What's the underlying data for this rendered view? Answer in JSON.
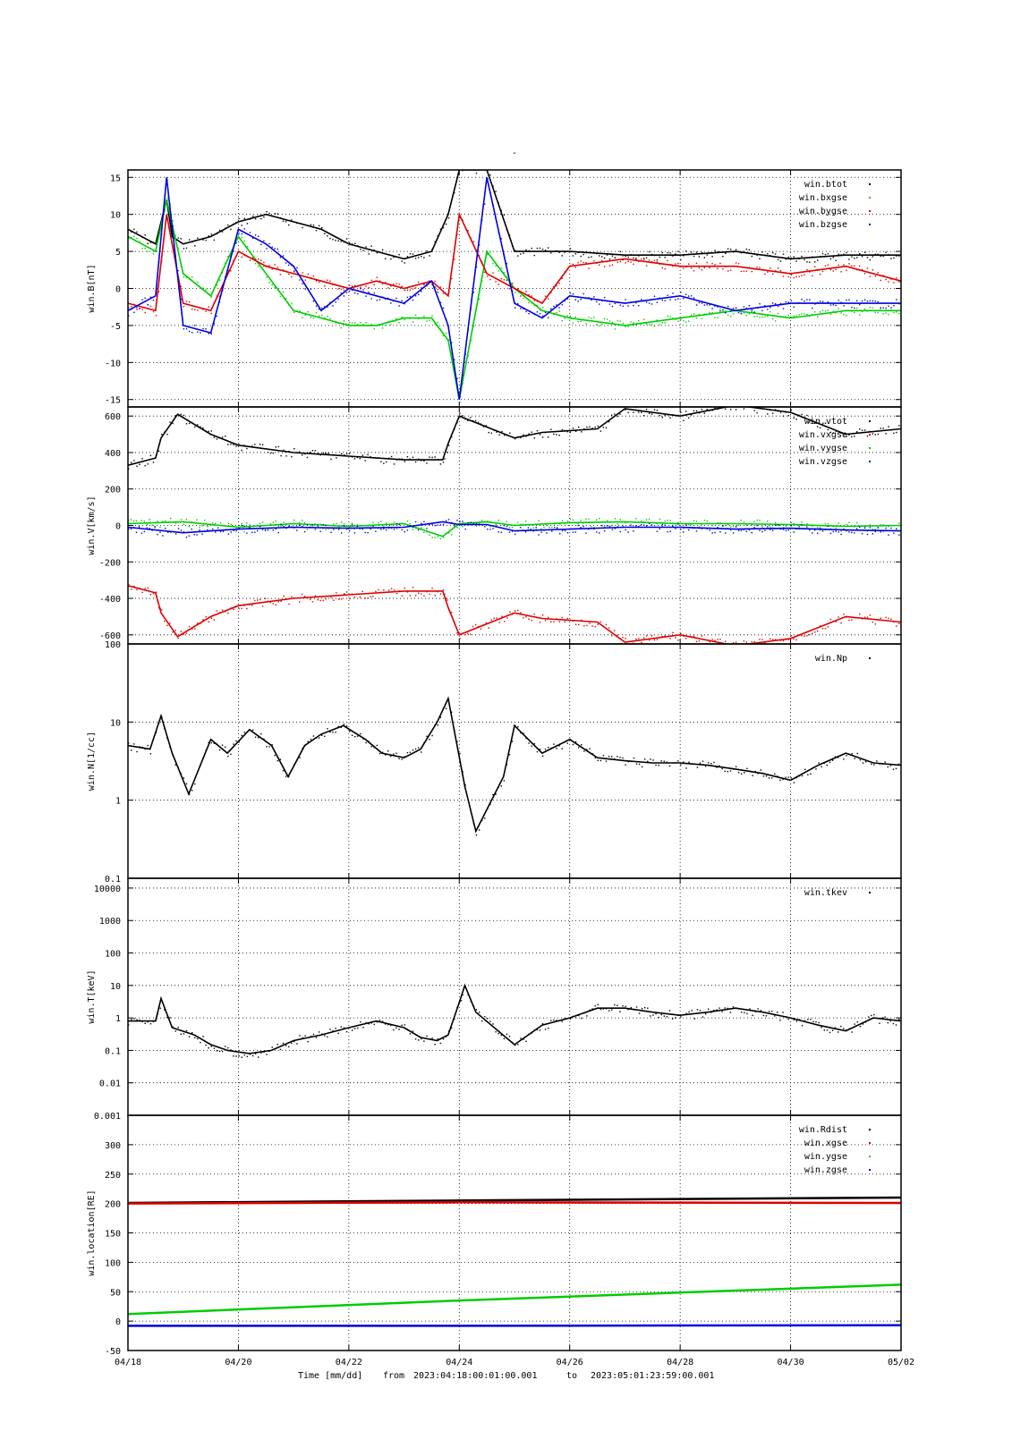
{
  "title": "-",
  "footer": {
    "xlabel": "Time [mm/dd]",
    "from_label": "from",
    "from_value": "2023:04:18:00:01:00.001",
    "to_label": "to",
    "to_value": "2023:05:01:23:59:00.001"
  },
  "colors": {
    "black": "#000000",
    "red": "#dd0000",
    "green": "#00cc00",
    "blue": "#0000dd"
  },
  "chart_data": [
    {
      "type": "scatter",
      "ylabel": "win.B[nT]",
      "ylim": [
        -16,
        16
      ],
      "yticks": [
        {
          "v": 15,
          "t": "15"
        },
        {
          "v": 10,
          "t": "10"
        },
        {
          "v": 5,
          "t": "5"
        },
        {
          "v": 0,
          "t": "0"
        },
        {
          "v": -5,
          "t": "-5"
        },
        {
          "v": -10,
          "t": "-10"
        },
        {
          "v": -15,
          "t": "-15"
        }
      ],
      "legend": "top-right",
      "series": [
        {
          "name": "win.btot",
          "color": "#000000",
          "x": [
            0,
            0.5,
            0.7,
            0.8,
            1,
            1.5,
            2,
            2.5,
            3,
            3.5,
            4,
            4.5,
            5,
            5.5,
            5.8,
            6,
            6.5,
            7,
            7.5,
            8,
            9,
            10,
            11,
            12,
            13,
            14
          ],
          "y": [
            8,
            6,
            12,
            7,
            6,
            7,
            9,
            10,
            9,
            8,
            6,
            5,
            4,
            5,
            10,
            16,
            16,
            5,
            5,
            5,
            4.5,
            4.5,
            5,
            4,
            4.5,
            4.5
          ]
        },
        {
          "name": "win.bxgse",
          "color": "#00cc00",
          "x": [
            0,
            0.5,
            0.7,
            1,
            1.5,
            2,
            2.5,
            3,
            3.5,
            4,
            4.5,
            5,
            5.5,
            5.8,
            6,
            6.5,
            7,
            7.5,
            8,
            9,
            10,
            11,
            12,
            13,
            14
          ],
          "y": [
            7,
            5,
            12,
            2,
            -1,
            7,
            2,
            -3,
            -4,
            -5,
            -5,
            -4,
            -4,
            -7,
            -15,
            5,
            0,
            -3,
            -4,
            -5,
            -4,
            -3,
            -4,
            -3,
            -3
          ]
        },
        {
          "name": "win.bygse",
          "color": "#dd0000",
          "x": [
            0,
            0.5,
            0.7,
            1,
            1.5,
            2,
            2.5,
            3,
            3.5,
            4,
            4.5,
            5,
            5.5,
            5.8,
            6,
            6.5,
            7,
            7.5,
            8,
            9,
            10,
            11,
            12,
            13,
            14
          ],
          "y": [
            -2,
            -3,
            10,
            -2,
            -3,
            5,
            3,
            2,
            1,
            0,
            1,
            0,
            1,
            -1,
            10,
            2,
            0,
            -2,
            3,
            4,
            3,
            3,
            2,
            3,
            1
          ]
        },
        {
          "name": "win.bzgse",
          "color": "#0000dd",
          "x": [
            0,
            0.5,
            0.7,
            1,
            1.5,
            2,
            2.5,
            3,
            3.5,
            4,
            4.5,
            5,
            5.5,
            5.8,
            6,
            6.5,
            7,
            7.5,
            8,
            9,
            10,
            11,
            12,
            13,
            14
          ],
          "y": [
            -3,
            -1,
            15,
            -5,
            -6,
            8,
            6,
            3,
            -3,
            0,
            -1,
            -2,
            1,
            -5,
            -15,
            15,
            -2,
            -4,
            -1,
            -2,
            -1,
            -3,
            -2,
            -2,
            -2
          ]
        }
      ]
    },
    {
      "type": "scatter",
      "ylabel": "win.V[km/s]",
      "ylim": [
        -650,
        650
      ],
      "yticks": [
        {
          "v": 600,
          "t": "600"
        },
        {
          "v": 400,
          "t": "400"
        },
        {
          "v": 200,
          "t": "200"
        },
        {
          "v": 0,
          "t": "0"
        },
        {
          "v": -200,
          "t": "-200"
        },
        {
          "v": -400,
          "t": "-400"
        },
        {
          "v": -600,
          "t": "-600"
        }
      ],
      "legend": "top-right",
      "series": [
        {
          "name": "win.vtot",
          "color": "#000000",
          "x": [
            0,
            0.5,
            0.6,
            0.9,
            1.5,
            2,
            3,
            4,
            5,
            5.7,
            5.8,
            6,
            7,
            7.5,
            8,
            8.5,
            9,
            10,
            11,
            12,
            13,
            14
          ],
          "y": [
            330,
            370,
            480,
            610,
            500,
            440,
            400,
            380,
            360,
            360,
            450,
            600,
            480,
            510,
            520,
            530,
            640,
            600,
            660,
            620,
            500,
            530
          ]
        },
        {
          "name": "win.vxgse",
          "color": "#dd0000",
          "x": [
            0,
            0.5,
            0.6,
            0.9,
            1.5,
            2,
            3,
            4,
            5,
            5.7,
            5.8,
            6,
            7,
            7.5,
            8,
            8.5,
            9,
            10,
            11,
            12,
            13,
            14
          ],
          "y": [
            -330,
            -370,
            -480,
            -610,
            -500,
            -440,
            -400,
            -380,
            -360,
            -360,
            -450,
            -600,
            -480,
            -510,
            -520,
            -530,
            -640,
            -600,
            -660,
            -620,
            -500,
            -530
          ]
        },
        {
          "name": "win.vygse",
          "color": "#00cc00",
          "x": [
            0,
            1,
            2,
            3,
            4,
            5,
            5.7,
            6,
            6.5,
            7,
            8,
            9,
            10,
            11,
            12,
            13,
            14
          ],
          "y": [
            10,
            20,
            -10,
            10,
            -5,
            10,
            -60,
            10,
            20,
            0,
            15,
            20,
            10,
            10,
            5,
            -5,
            0
          ]
        },
        {
          "name": "win.vzgse",
          "color": "#0000dd",
          "x": [
            0,
            1,
            2,
            3,
            4,
            5,
            5.7,
            6,
            6.5,
            7,
            8,
            9,
            10,
            11,
            12,
            13,
            14
          ],
          "y": [
            -10,
            -40,
            -20,
            -10,
            -15,
            -10,
            20,
            5,
            5,
            -30,
            -20,
            -10,
            -10,
            -20,
            -15,
            -25,
            -30
          ]
        }
      ]
    },
    {
      "type": "scatter",
      "ylabel": "win.N[1/cc]",
      "yscale": "log",
      "ylim": [
        0.1,
        100
      ],
      "yticks": [
        {
          "v": 100,
          "t": "100"
        },
        {
          "v": 10,
          "t": "10"
        },
        {
          "v": 1,
          "t": "1"
        },
        {
          "v": 0.1,
          "t": "0.1"
        }
      ],
      "legend": "top-right",
      "series": [
        {
          "name": "win.Np",
          "color": "#000000",
          "x": [
            0,
            0.4,
            0.6,
            0.8,
            1.1,
            1.5,
            1.8,
            2.2,
            2.6,
            2.9,
            3.2,
            3.5,
            3.9,
            4.3,
            4.6,
            5,
            5.3,
            5.6,
            5.8,
            6.1,
            6.3,
            6.8,
            7,
            7.5,
            8,
            8.5,
            9,
            9.5,
            10,
            10.5,
            11,
            11.5,
            12,
            12.5,
            13,
            13.5,
            14
          ],
          "y": [
            5,
            4.5,
            12,
            4,
            1.2,
            6,
            4,
            8,
            5,
            2,
            5,
            7,
            9,
            6,
            4,
            3.5,
            4.5,
            10,
            20,
            1.5,
            0.4,
            2,
            9,
            4,
            6,
            3.5,
            3.2,
            3,
            3,
            2.8,
            2.5,
            2.2,
            1.8,
            2.8,
            4,
            3,
            2.8
          ]
        }
      ]
    },
    {
      "type": "scatter",
      "ylabel": "win.T[keV]",
      "yscale": "log",
      "ylim": [
        0.001,
        20000
      ],
      "yticks": [
        {
          "v": 10000,
          "t": "10000"
        },
        {
          "v": 1000,
          "t": "1000"
        },
        {
          "v": 100,
          "t": "100"
        },
        {
          "v": 10,
          "t": "10"
        },
        {
          "v": 1,
          "t": "1"
        },
        {
          "v": 0.1,
          "t": "0.1"
        },
        {
          "v": 0.01,
          "t": "0.01"
        },
        {
          "v": 0.001,
          "t": "0.001"
        }
      ],
      "legend": "top-right",
      "series": [
        {
          "name": "win.tkev",
          "color": "#000000",
          "x": [
            0,
            0.5,
            0.6,
            0.8,
            1.2,
            1.5,
            1.8,
            2.2,
            2.6,
            3,
            3.5,
            4,
            4.5,
            5,
            5.3,
            5.6,
            5.8,
            6,
            6.1,
            6.3,
            7,
            7.5,
            8,
            8.5,
            9,
            9.5,
            10,
            10.5,
            11,
            11.5,
            12,
            12.5,
            13,
            13.5,
            14
          ],
          "y": [
            0.8,
            0.8,
            4,
            0.5,
            0.3,
            0.15,
            0.1,
            0.08,
            0.1,
            0.2,
            0.3,
            0.5,
            0.8,
            0.5,
            0.25,
            0.2,
            0.3,
            3,
            10,
            1.5,
            0.15,
            0.6,
            1,
            2,
            2,
            1.5,
            1.2,
            1.5,
            2,
            1.5,
            1,
            0.6,
            0.4,
            1,
            0.8
          ]
        }
      ]
    },
    {
      "type": "line",
      "ylabel": "win.location[RE]",
      "ylim": [
        -50,
        350
      ],
      "yticks": [
        {
          "v": 300,
          "t": "300"
        },
        {
          "v": 250,
          "t": "250"
        },
        {
          "v": 200,
          "t": "200"
        },
        {
          "v": 150,
          "t": "150"
        },
        {
          "v": 100,
          "t": "100"
        },
        {
          "v": 50,
          "t": "50"
        },
        {
          "v": 0,
          "t": "0"
        },
        {
          "v": -50,
          "t": "-50"
        }
      ],
      "legend": "top-right",
      "series": [
        {
          "name": "win.Rdist",
          "color": "#000000",
          "x": [
            0,
            6,
            14
          ],
          "y": [
            201,
            205,
            210
          ]
        },
        {
          "name": "win.xgse",
          "color": "#dd0000",
          "x": [
            0,
            6,
            14
          ],
          "y": [
            200,
            202,
            201
          ]
        },
        {
          "name": "win.ygse",
          "color": "#00cc00",
          "x": [
            0,
            6,
            14
          ],
          "y": [
            12,
            35,
            62
          ]
        },
        {
          "name": "win.zgse",
          "color": "#0000dd",
          "x": [
            0,
            6,
            14
          ],
          "y": [
            -8,
            -8,
            -7
          ]
        }
      ]
    }
  ],
  "xaxis": {
    "xlim": [
      0,
      14
    ],
    "ticks": [
      {
        "v": 0,
        "t": "04/18"
      },
      {
        "v": 2,
        "t": "04/20"
      },
      {
        "v": 4,
        "t": "04/22"
      },
      {
        "v": 6,
        "t": "04/24"
      },
      {
        "v": 8,
        "t": "04/26"
      },
      {
        "v": 10,
        "t": "04/28"
      },
      {
        "v": 12,
        "t": "04/30"
      },
      {
        "v": 14,
        "t": "05/02"
      }
    ]
  }
}
